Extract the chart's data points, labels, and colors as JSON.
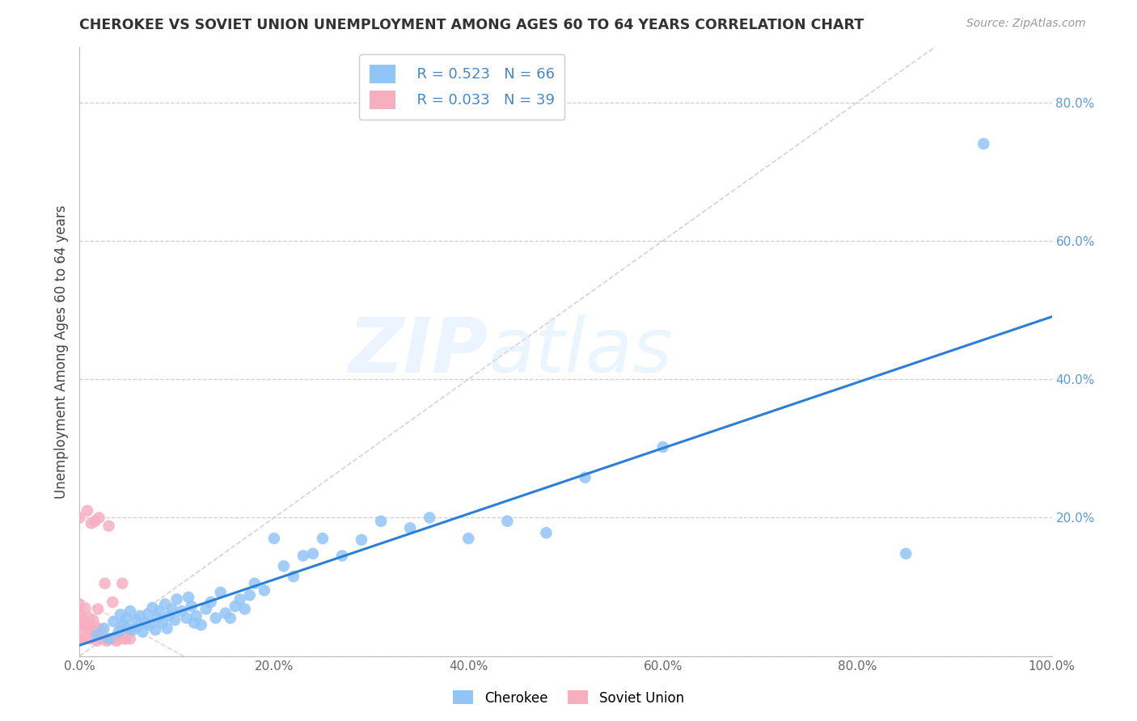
{
  "title": "CHEROKEE VS SOVIET UNION UNEMPLOYMENT AMONG AGES 60 TO 64 YEARS CORRELATION CHART",
  "source": "Source: ZipAtlas.com",
  "ylabel": "Unemployment Among Ages 60 to 64 years",
  "watermark_zip": "ZIP",
  "watermark_atlas": "atlas",
  "cherokee_R": 0.523,
  "cherokee_N": 66,
  "soviet_R": 0.033,
  "soviet_N": 39,
  "cherokee_color": "#92c5f7",
  "soviet_color": "#f7afc0",
  "cherokee_line_color": "#2b7fd4",
  "diagonal_color": "#c8c8d8",
  "right_tick_color": "#5b9bd5",
  "background_color": "#ffffff",
  "xlim": [
    0.0,
    1.0
  ],
  "ylim": [
    0.0,
    0.88
  ],
  "xticks": [
    0.0,
    0.2,
    0.4,
    0.6,
    0.8,
    1.0
  ],
  "yticks": [
    0.0,
    0.2,
    0.4,
    0.6,
    0.8
  ],
  "right_yticks": [
    0.2,
    0.4,
    0.6,
    0.8
  ],
  "right_ytick_labels": [
    "20.0%",
    "40.0%",
    "60.0%",
    "80.0%"
  ],
  "cherokee_x": [
    0.018,
    0.025,
    0.03,
    0.035,
    0.04,
    0.042,
    0.045,
    0.048,
    0.05,
    0.052,
    0.055,
    0.058,
    0.06,
    0.062,
    0.065,
    0.068,
    0.07,
    0.072,
    0.075,
    0.078,
    0.08,
    0.082,
    0.085,
    0.088,
    0.09,
    0.092,
    0.095,
    0.098,
    0.1,
    0.105,
    0.11,
    0.112,
    0.115,
    0.118,
    0.12,
    0.125,
    0.13,
    0.135,
    0.14,
    0.145,
    0.15,
    0.155,
    0.16,
    0.165,
    0.17,
    0.175,
    0.18,
    0.19,
    0.2,
    0.21,
    0.22,
    0.23,
    0.24,
    0.25,
    0.27,
    0.29,
    0.31,
    0.34,
    0.36,
    0.4,
    0.44,
    0.48,
    0.52,
    0.6,
    0.85,
    0.93
  ],
  "cherokee_y": [
    0.03,
    0.04,
    0.025,
    0.05,
    0.035,
    0.06,
    0.045,
    0.055,
    0.04,
    0.065,
    0.038,
    0.052,
    0.042,
    0.058,
    0.035,
    0.048,
    0.06,
    0.045,
    0.07,
    0.038,
    0.055,
    0.065,
    0.048,
    0.075,
    0.04,
    0.058,
    0.068,
    0.052,
    0.082,
    0.065,
    0.055,
    0.085,
    0.072,
    0.048,
    0.058,
    0.045,
    0.068,
    0.078,
    0.055,
    0.092,
    0.062,
    0.055,
    0.072,
    0.082,
    0.068,
    0.088,
    0.105,
    0.095,
    0.17,
    0.13,
    0.115,
    0.145,
    0.148,
    0.17,
    0.145,
    0.168,
    0.195,
    0.185,
    0.2,
    0.17,
    0.195,
    0.178,
    0.258,
    0.302,
    0.148,
    0.74
  ],
  "soviet_x": [
    0.0,
    0.0,
    0.0,
    0.0,
    0.0,
    0.002,
    0.004,
    0.005,
    0.006,
    0.007,
    0.008,
    0.009,
    0.01,
    0.011,
    0.012,
    0.013,
    0.014,
    0.015,
    0.016,
    0.017,
    0.018,
    0.019,
    0.02,
    0.022,
    0.024,
    0.026,
    0.028,
    0.03,
    0.032,
    0.034,
    0.036,
    0.038,
    0.04,
    0.042,
    0.044,
    0.046,
    0.048,
    0.05,
    0.052
  ],
  "soviet_y": [
    0.025,
    0.045,
    0.06,
    0.075,
    0.2,
    0.038,
    0.052,
    0.025,
    0.068,
    0.042,
    0.21,
    0.038,
    0.055,
    0.025,
    0.192,
    0.038,
    0.052,
    0.028,
    0.195,
    0.042,
    0.022,
    0.068,
    0.2,
    0.038,
    0.025,
    0.105,
    0.022,
    0.188,
    0.025,
    0.078,
    0.025,
    0.022,
    0.025,
    0.042,
    0.105,
    0.025,
    0.025,
    0.032,
    0.025
  ]
}
